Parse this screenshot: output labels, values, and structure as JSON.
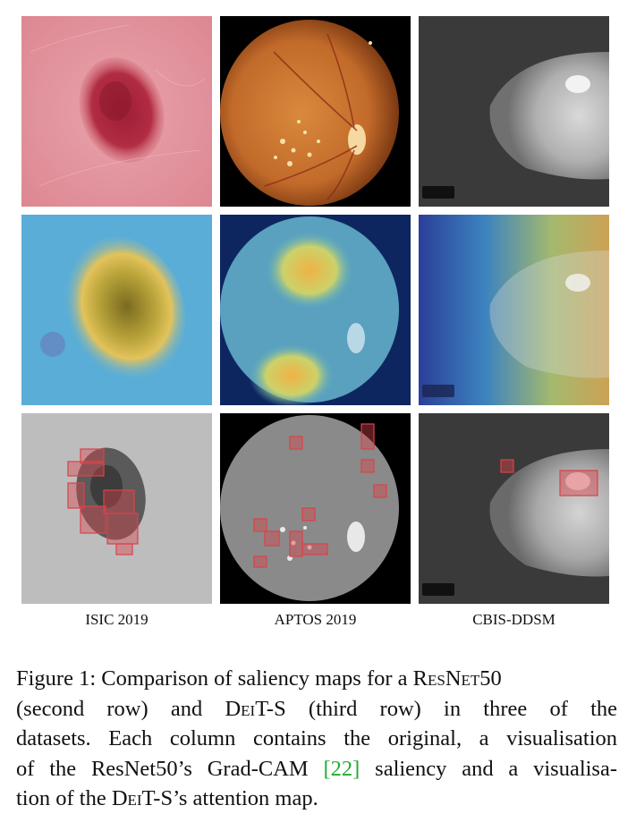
{
  "figure": {
    "columns": [
      {
        "label": "ISIC 2019"
      },
      {
        "label": "APTOS 2019"
      },
      {
        "label": "CBIS-DDSM"
      }
    ],
    "caption": {
      "label": "Figure 1:",
      "l1_text": " Comparison of saliency maps for a ",
      "model1": "ResNet50",
      "l2": "(second row) and ",
      "model2": "DeiT-S",
      "l2_end": " (third row) in three of the",
      "l3": "datasets. Each column contains the original, a visualisation",
      "l4_a": "of the ResNet50’s Grad-CAM ",
      "citation": "[22]",
      "l4_b": " saliency and a visualisa-",
      "l5_a": "tion of the ",
      "model3": "DeiT-S",
      "l5_b": "’s attention map."
    },
    "colors": {
      "citation": "#1fae2e",
      "attention_box": "#d9434a"
    }
  }
}
